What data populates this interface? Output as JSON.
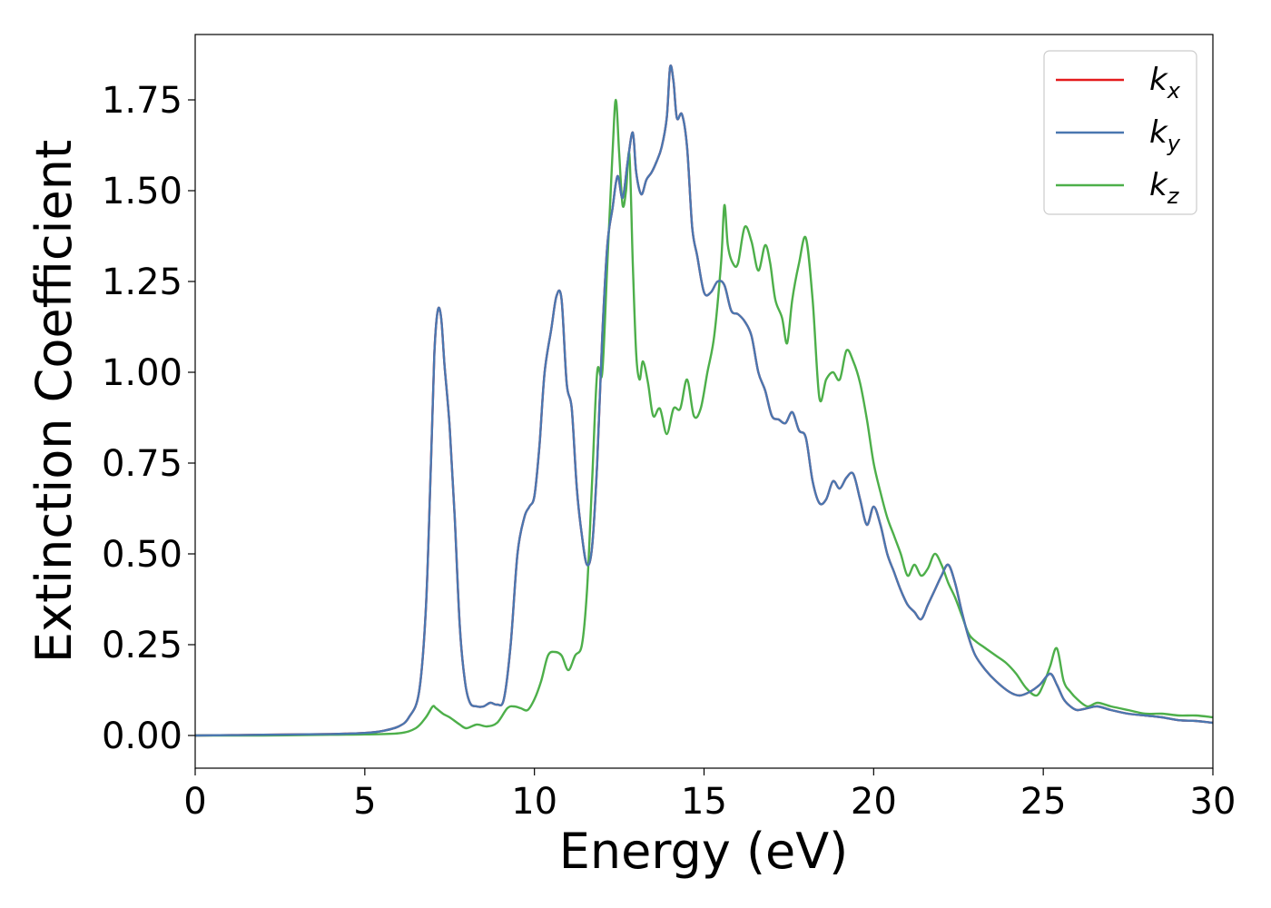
{
  "chart_data": {
    "type": "line",
    "xlabel": "Energy (eV)",
    "ylabel": "Extinction Coefficient",
    "xlim": [
      0,
      30
    ],
    "ylim": [
      -0.09,
      1.93
    ],
    "xticks": [
      0,
      5,
      10,
      15,
      20,
      25,
      30
    ],
    "xtick_labels": [
      "0",
      "5",
      "10",
      "15",
      "20",
      "25",
      "30"
    ],
    "yticks": [
      0,
      0.25,
      0.5,
      0.75,
      1.0,
      1.25,
      1.5,
      1.75
    ],
    "ytick_labels": [
      "0.00",
      "0.25",
      "0.50",
      "0.75",
      "1.00",
      "1.25",
      "1.50",
      "1.75"
    ],
    "grid": false,
    "legend_position": "top-right",
    "series": [
      {
        "name": "k_x",
        "label_base": "k",
        "label_sub": "x",
        "color": "#e41a1c",
        "x": [
          0,
          2,
          4,
          5,
          5.5,
          6,
          6.3,
          6.6,
          6.8,
          6.95,
          7.05,
          7.15,
          7.25,
          7.35,
          7.5,
          7.65,
          7.8,
          7.95,
          8.1,
          8.3,
          8.5,
          8.7,
          8.9,
          9.1,
          9.3,
          9.5,
          9.7,
          9.85,
          10.0,
          10.15,
          10.3,
          10.5,
          10.65,
          10.8,
          10.95,
          11.1,
          11.25,
          11.4,
          11.55,
          11.7,
          11.85,
          12.0,
          12.15,
          12.3,
          12.45,
          12.6,
          12.75,
          12.9,
          13.0,
          13.15,
          13.3,
          13.45,
          13.6,
          13.75,
          13.9,
          14.0,
          14.1,
          14.2,
          14.35,
          14.5,
          14.65,
          14.8,
          15.0,
          15.2,
          15.4,
          15.6,
          15.8,
          16.0,
          16.2,
          16.4,
          16.6,
          16.8,
          17.0,
          17.2,
          17.4,
          17.6,
          17.8,
          18.0,
          18.2,
          18.4,
          18.6,
          18.8,
          19.0,
          19.2,
          19.4,
          19.6,
          19.8,
          20.0,
          20.2,
          20.4,
          20.6,
          20.8,
          21.0,
          21.2,
          21.4,
          21.6,
          21.8,
          22.0,
          22.2,
          22.4,
          22.6,
          22.8,
          23.0,
          23.3,
          23.6,
          24.0,
          24.3,
          24.6,
          24.9,
          25.2,
          25.4,
          25.6,
          25.8,
          26.0,
          26.3,
          26.6,
          27.0,
          27.5,
          28.0,
          28.5,
          29.0,
          29.5,
          30.0
        ],
        "values": [
          0.0,
          0.002,
          0.004,
          0.007,
          0.012,
          0.025,
          0.05,
          0.12,
          0.35,
          0.75,
          1.05,
          1.17,
          1.15,
          1.02,
          0.85,
          0.6,
          0.3,
          0.15,
          0.09,
          0.08,
          0.08,
          0.09,
          0.085,
          0.1,
          0.25,
          0.5,
          0.6,
          0.63,
          0.66,
          0.8,
          1.0,
          1.12,
          1.21,
          1.2,
          0.97,
          0.9,
          0.68,
          0.55,
          0.47,
          0.52,
          0.75,
          1.1,
          1.35,
          1.45,
          1.54,
          1.48,
          1.58,
          1.66,
          1.55,
          1.49,
          1.53,
          1.55,
          1.58,
          1.62,
          1.7,
          1.84,
          1.8,
          1.7,
          1.71,
          1.62,
          1.4,
          1.32,
          1.22,
          1.22,
          1.25,
          1.24,
          1.17,
          1.16,
          1.14,
          1.1,
          1.0,
          0.95,
          0.88,
          0.87,
          0.86,
          0.89,
          0.84,
          0.82,
          0.7,
          0.64,
          0.65,
          0.7,
          0.68,
          0.71,
          0.72,
          0.65,
          0.58,
          0.63,
          0.58,
          0.5,
          0.45,
          0.4,
          0.36,
          0.34,
          0.32,
          0.36,
          0.4,
          0.44,
          0.47,
          0.42,
          0.34,
          0.27,
          0.22,
          0.18,
          0.15,
          0.12,
          0.11,
          0.12,
          0.14,
          0.17,
          0.14,
          0.1,
          0.08,
          0.07,
          0.075,
          0.08,
          0.07,
          0.06,
          0.055,
          0.05,
          0.042,
          0.04,
          0.035
        ]
      },
      {
        "name": "k_y",
        "label_base": "k",
        "label_sub": "y",
        "color": "#4a77b0",
        "x": [
          0,
          2,
          4,
          5,
          5.5,
          6,
          6.3,
          6.6,
          6.8,
          6.95,
          7.05,
          7.15,
          7.25,
          7.35,
          7.5,
          7.65,
          7.8,
          7.95,
          8.1,
          8.3,
          8.5,
          8.7,
          8.9,
          9.1,
          9.3,
          9.5,
          9.7,
          9.85,
          10.0,
          10.15,
          10.3,
          10.5,
          10.65,
          10.8,
          10.95,
          11.1,
          11.25,
          11.4,
          11.55,
          11.7,
          11.85,
          12.0,
          12.15,
          12.3,
          12.45,
          12.6,
          12.75,
          12.9,
          13.0,
          13.15,
          13.3,
          13.45,
          13.6,
          13.75,
          13.9,
          14.0,
          14.1,
          14.2,
          14.35,
          14.5,
          14.65,
          14.8,
          15.0,
          15.2,
          15.4,
          15.6,
          15.8,
          16.0,
          16.2,
          16.4,
          16.6,
          16.8,
          17.0,
          17.2,
          17.4,
          17.6,
          17.8,
          18.0,
          18.2,
          18.4,
          18.6,
          18.8,
          19.0,
          19.2,
          19.4,
          19.6,
          19.8,
          20.0,
          20.2,
          20.4,
          20.6,
          20.8,
          21.0,
          21.2,
          21.4,
          21.6,
          21.8,
          22.0,
          22.2,
          22.4,
          22.6,
          22.8,
          23.0,
          23.3,
          23.6,
          24.0,
          24.3,
          24.6,
          24.9,
          25.2,
          25.4,
          25.6,
          25.8,
          26.0,
          26.3,
          26.6,
          27.0,
          27.5,
          28.0,
          28.5,
          29.0,
          29.5,
          30.0
        ],
        "values": [
          0.0,
          0.002,
          0.004,
          0.007,
          0.012,
          0.025,
          0.05,
          0.12,
          0.35,
          0.75,
          1.05,
          1.17,
          1.15,
          1.02,
          0.85,
          0.6,
          0.3,
          0.15,
          0.09,
          0.08,
          0.08,
          0.09,
          0.085,
          0.1,
          0.25,
          0.5,
          0.6,
          0.63,
          0.66,
          0.8,
          1.0,
          1.12,
          1.21,
          1.2,
          0.97,
          0.9,
          0.68,
          0.55,
          0.47,
          0.52,
          0.75,
          1.1,
          1.35,
          1.45,
          1.54,
          1.48,
          1.58,
          1.66,
          1.55,
          1.49,
          1.53,
          1.55,
          1.58,
          1.62,
          1.7,
          1.84,
          1.8,
          1.7,
          1.71,
          1.62,
          1.4,
          1.32,
          1.22,
          1.22,
          1.25,
          1.24,
          1.17,
          1.16,
          1.14,
          1.1,
          1.0,
          0.95,
          0.88,
          0.87,
          0.86,
          0.89,
          0.84,
          0.82,
          0.7,
          0.64,
          0.65,
          0.7,
          0.68,
          0.71,
          0.72,
          0.65,
          0.58,
          0.63,
          0.58,
          0.5,
          0.45,
          0.4,
          0.36,
          0.34,
          0.32,
          0.36,
          0.4,
          0.44,
          0.47,
          0.42,
          0.34,
          0.27,
          0.22,
          0.18,
          0.15,
          0.12,
          0.11,
          0.12,
          0.14,
          0.17,
          0.14,
          0.1,
          0.08,
          0.07,
          0.075,
          0.08,
          0.07,
          0.06,
          0.055,
          0.05,
          0.042,
          0.04,
          0.035
        ]
      },
      {
        "name": "k_z",
        "label_base": "k",
        "label_sub": "z",
        "color": "#4daf4a",
        "x": [
          0,
          2,
          4,
          5,
          6,
          6.5,
          6.8,
          7.0,
          7.1,
          7.3,
          7.5,
          7.8,
          8.0,
          8.3,
          8.6,
          8.9,
          9.2,
          9.4,
          9.6,
          9.8,
          10.0,
          10.2,
          10.4,
          10.6,
          10.8,
          11.0,
          11.2,
          11.4,
          11.55,
          11.7,
          11.85,
          12.0,
          12.15,
          12.3,
          12.4,
          12.5,
          12.6,
          12.7,
          12.8,
          12.9,
          13.0,
          13.1,
          13.2,
          13.35,
          13.5,
          13.7,
          13.9,
          14.1,
          14.3,
          14.5,
          14.7,
          14.9,
          15.1,
          15.3,
          15.5,
          15.6,
          15.7,
          15.85,
          16.0,
          16.2,
          16.4,
          16.6,
          16.8,
          16.95,
          17.1,
          17.3,
          17.45,
          17.6,
          17.8,
          18.0,
          18.2,
          18.4,
          18.6,
          18.8,
          19.0,
          19.2,
          19.4,
          19.6,
          19.8,
          20.0,
          20.2,
          20.4,
          20.6,
          20.8,
          21.0,
          21.2,
          21.4,
          21.6,
          21.8,
          22.0,
          22.2,
          22.4,
          22.6,
          22.8,
          23.0,
          23.3,
          23.6,
          23.9,
          24.2,
          24.5,
          24.8,
          25.0,
          25.2,
          25.4,
          25.6,
          25.8,
          26.0,
          26.3,
          26.6,
          27.0,
          27.5,
          28.0,
          28.5,
          29.0,
          29.5,
          30.0
        ],
        "values": [
          0.0,
          0.0,
          0.002,
          0.003,
          0.006,
          0.02,
          0.05,
          0.08,
          0.075,
          0.06,
          0.05,
          0.03,
          0.02,
          0.03,
          0.025,
          0.035,
          0.075,
          0.08,
          0.075,
          0.07,
          0.1,
          0.15,
          0.22,
          0.23,
          0.22,
          0.18,
          0.22,
          0.25,
          0.4,
          0.7,
          1.0,
          1.0,
          1.3,
          1.6,
          1.75,
          1.6,
          1.46,
          1.5,
          1.6,
          1.3,
          1.05,
          0.98,
          1.03,
          0.97,
          0.88,
          0.9,
          0.83,
          0.9,
          0.9,
          0.98,
          0.88,
          0.9,
          1.0,
          1.1,
          1.3,
          1.46,
          1.35,
          1.3,
          1.3,
          1.4,
          1.36,
          1.28,
          1.35,
          1.3,
          1.2,
          1.15,
          1.08,
          1.2,
          1.3,
          1.37,
          1.2,
          0.93,
          0.98,
          1.0,
          0.98,
          1.06,
          1.03,
          0.97,
          0.87,
          0.75,
          0.67,
          0.6,
          0.55,
          0.5,
          0.44,
          0.47,
          0.44,
          0.46,
          0.5,
          0.47,
          0.42,
          0.38,
          0.33,
          0.28,
          0.26,
          0.24,
          0.22,
          0.2,
          0.17,
          0.13,
          0.11,
          0.14,
          0.19,
          0.24,
          0.15,
          0.12,
          0.1,
          0.08,
          0.09,
          0.08,
          0.07,
          0.06,
          0.06,
          0.055,
          0.055,
          0.05
        ]
      }
    ]
  }
}
